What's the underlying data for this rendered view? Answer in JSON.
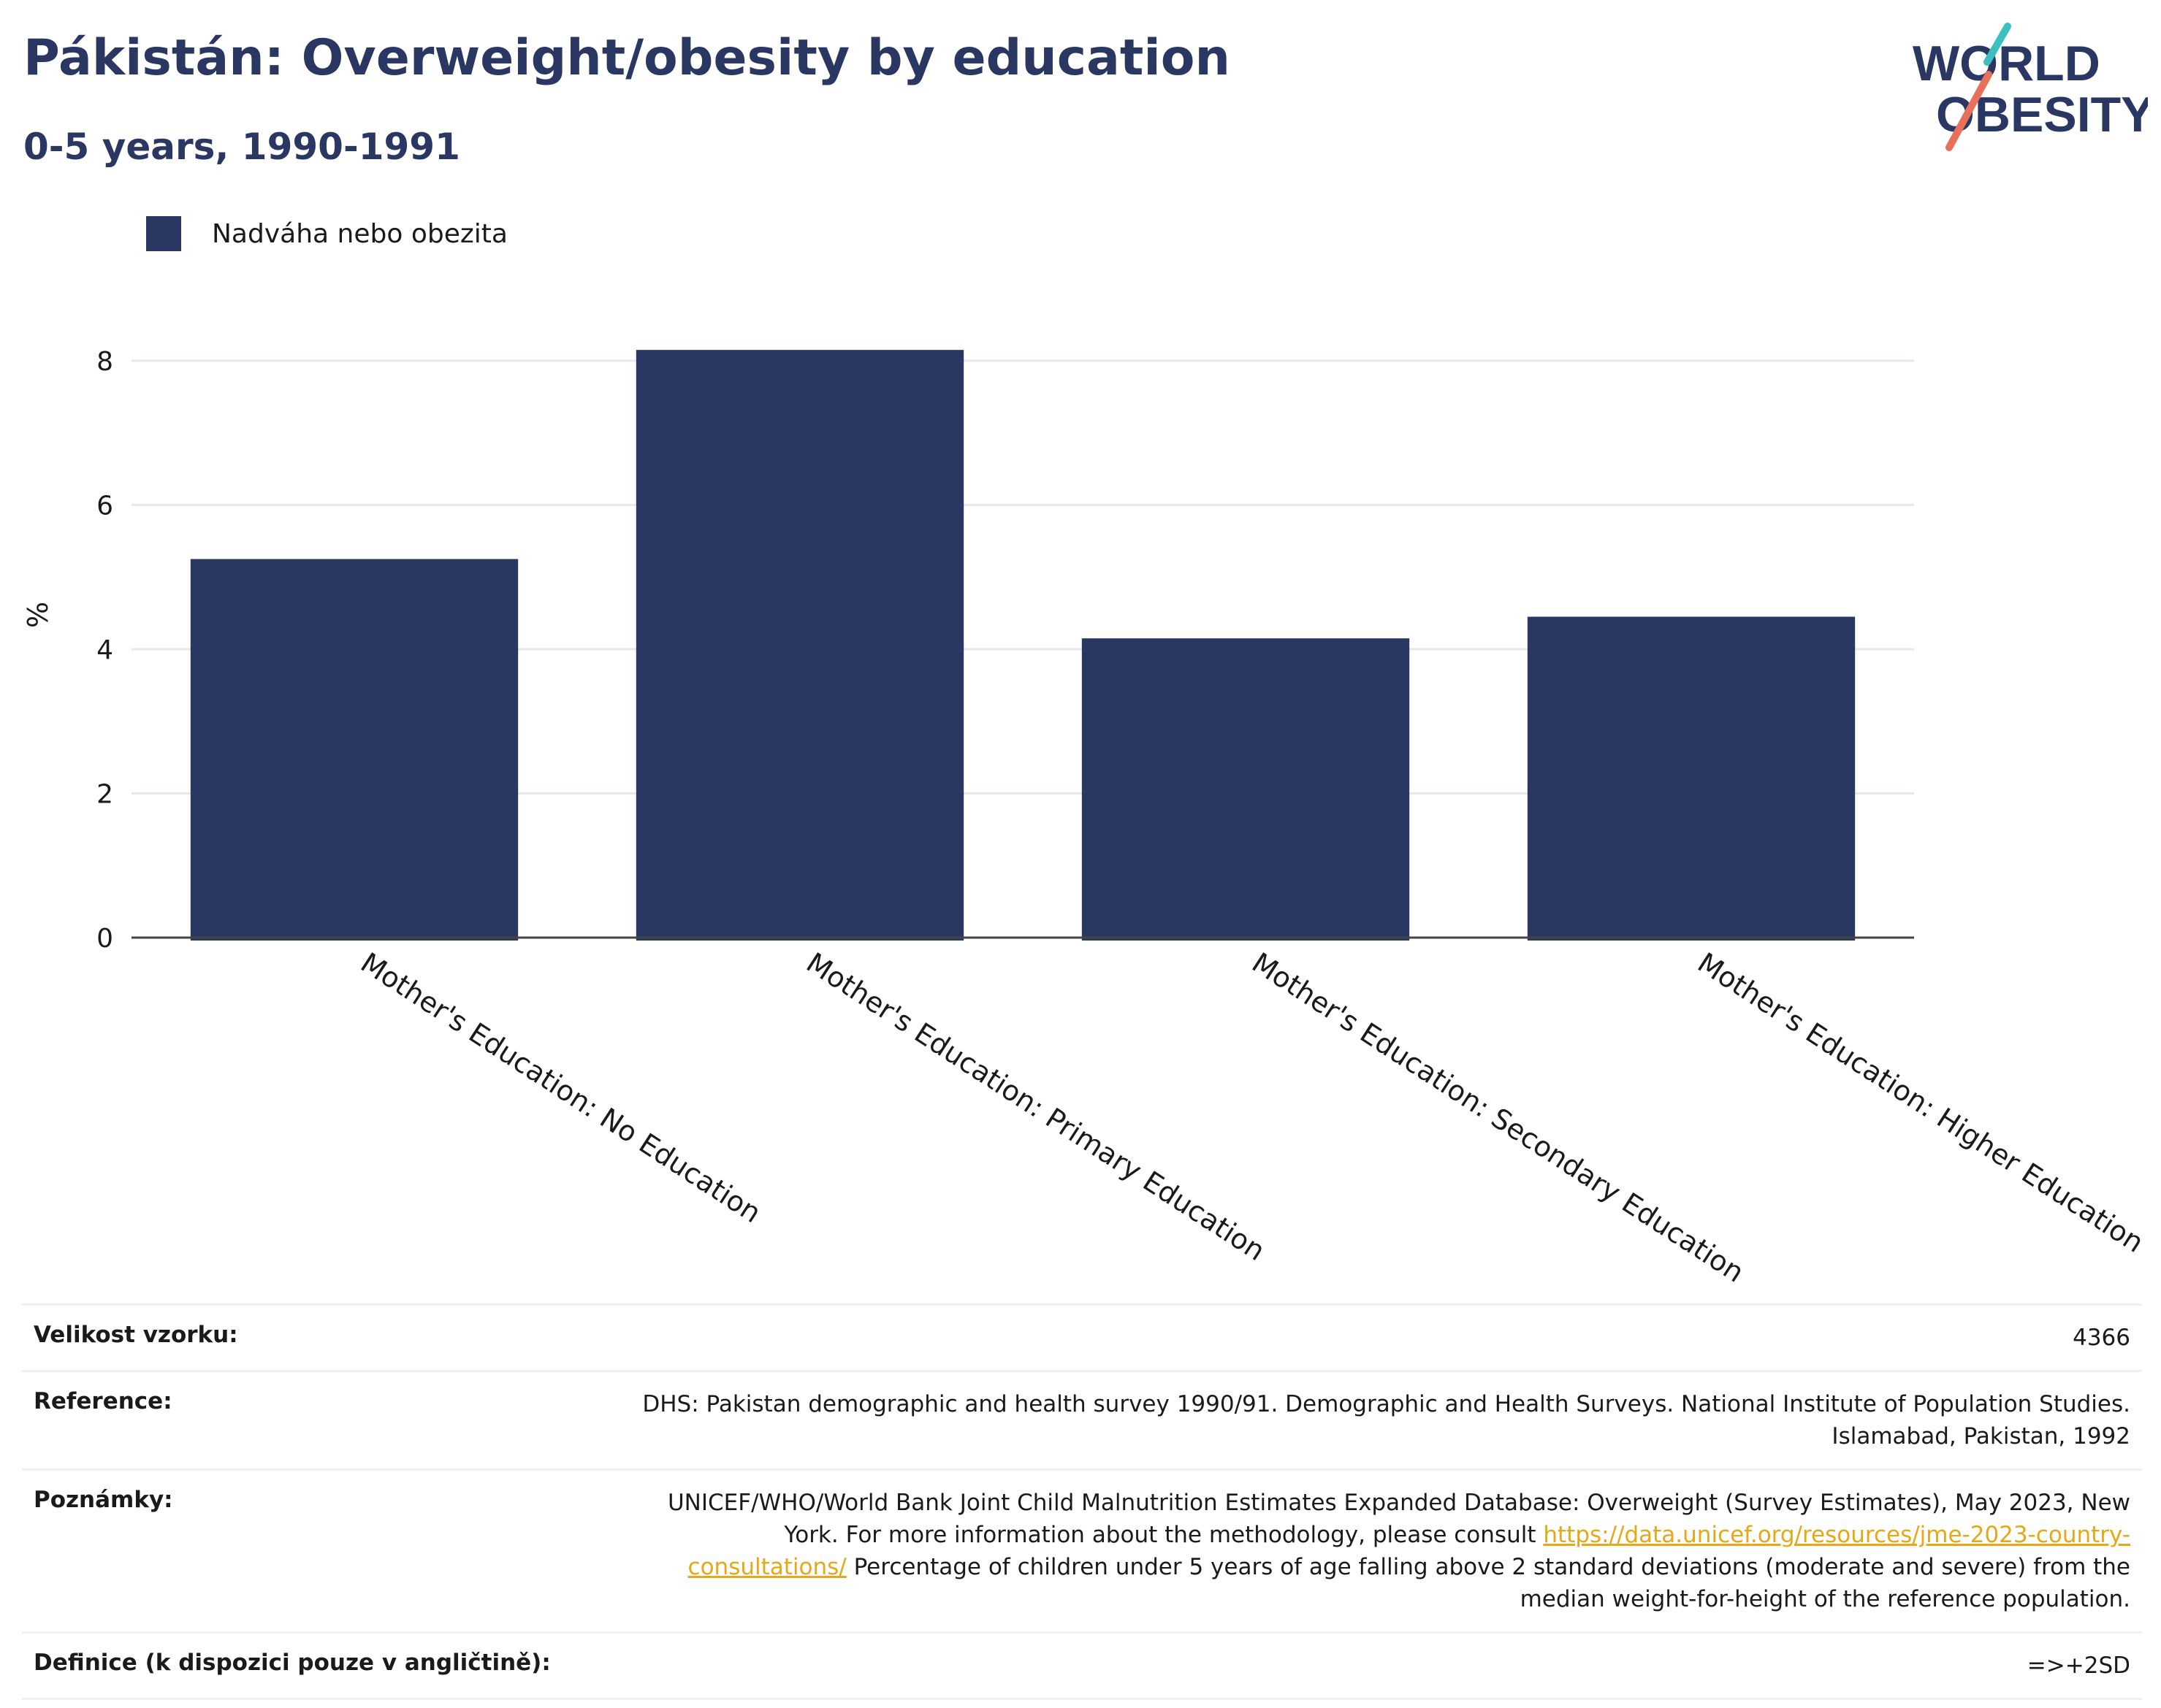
{
  "title": "Pákistán: Overweight/obesity by education",
  "subtitle": "0-5 years, 1990-1991",
  "logo": {
    "line1": "WORLD",
    "line2": "OBESITY"
  },
  "colors": {
    "bar": "#2b3763",
    "title": "#2b3763",
    "grid": "#e6e8ef",
    "link": "#e6a817",
    "logo_teal": "#3bbfbf",
    "logo_coral": "#e8705a"
  },
  "chart_data": {
    "type": "bar",
    "categories": [
      "Mother's Education: No Education",
      "Mother's Education: Primary Education",
      "Mother's Education: Secondary Education",
      "Mother's Education: Higher Education"
    ],
    "series": [
      {
        "name": "Nadváha nebo obezita",
        "values": [
          5.25,
          8.15,
          4.15,
          4.45
        ]
      }
    ],
    "ylabel": "%",
    "ylim": [
      0,
      8.5
    ],
    "yticks": [
      0,
      2,
      4,
      6,
      8
    ],
    "grid": true,
    "legend": "top-left"
  },
  "info": {
    "sample_label": "Velikost vzorku:",
    "sample_value": "4366",
    "reference_label": "Reference:",
    "reference_value": "DHS: Pakistan demographic and health survey 1990/91. Demographic and Health Surveys. National Institute of Population Studies. Islamabad, Pakistan, 1992",
    "notes_label": "Poznámky:",
    "notes_text_1": "UNICEF/WHO/World Bank Joint Child Malnutrition Estimates Expanded Database: Overweight (Survey Estimates), May 2023, New York. For more information about the methodology, please consult",
    "notes_link": "https://data.unicef.org/resources/jme-2023-country-consultations/",
    "notes_text_2": "Percentage of children under 5 years of age falling above 2 standard deviations (moderate and severe) from the median weight-for-height of the reference population.",
    "definition_label": "Definice (k dispozici pouze v angličtině):",
    "definition_value": "=>+2SD"
  }
}
